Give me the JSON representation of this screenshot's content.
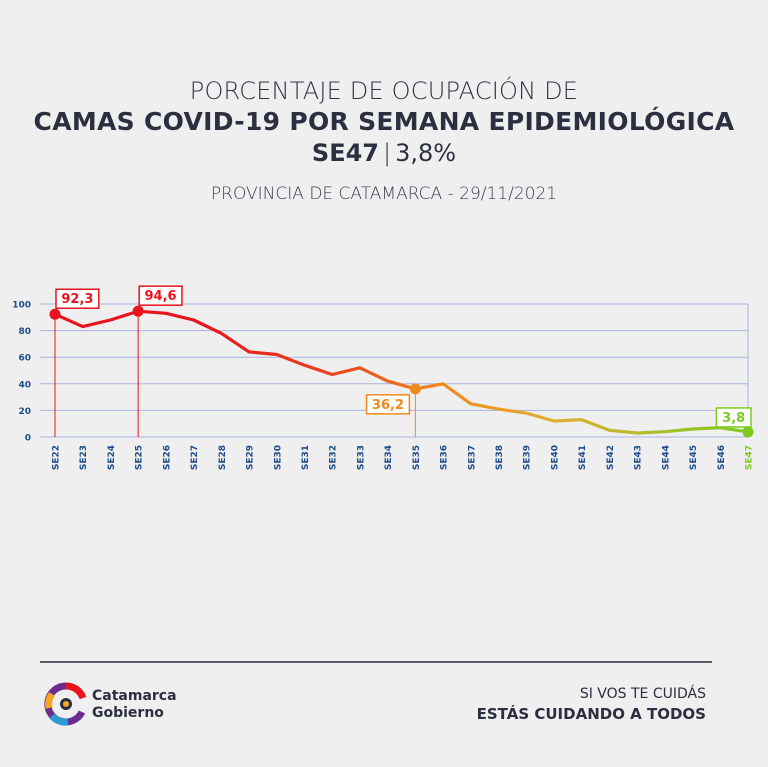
{
  "header": {
    "line1": "PORCENTAJE DE OCUPACIÓN DE",
    "line2": "CAMAS COVID-19 POR SEMANA EPIDEMIOLÓGICA",
    "line3_week": "SE47",
    "line3_sep": "|",
    "line3_value": "3,8%",
    "subtitle": "PROVINCIA DE CATAMARCA - 29/11/2021"
  },
  "chart_data": {
    "type": "line",
    "title": "PORCENTAJE DE OCUPACIÓN DE CAMAS COVID-19 POR SEMANA EPIDEMIOLÓGICA",
    "categories": [
      "SE22",
      "SE23",
      "SE24",
      "SE25",
      "SE26",
      "SE27",
      "SE28",
      "SE29",
      "SE30",
      "SE31",
      "SE32",
      "SE33",
      "SE34",
      "SE35",
      "SE36",
      "SE37",
      "SE38",
      "SE39",
      "SE40",
      "SE41",
      "SE42",
      "SE43",
      "SE44",
      "SE45",
      "SE46",
      "SE47"
    ],
    "values": [
      92.3,
      83,
      88,
      94.6,
      93,
      88,
      78,
      64,
      62,
      54,
      47,
      52,
      42,
      36.2,
      40,
      25,
      21,
      18,
      12,
      13,
      5,
      3,
      4,
      6,
      7,
      3.8
    ],
    "ylim": [
      0,
      100
    ],
    "yticks": [
      0,
      20,
      40,
      60,
      80,
      100
    ],
    "grid": true,
    "highlights": [
      {
        "index": 0,
        "label": "92,3",
        "color": "#e8141d"
      },
      {
        "index": 3,
        "label": "94,6",
        "color": "#e8141d"
      },
      {
        "index": 13,
        "label": "36,2",
        "color": "#f08a1c"
      },
      {
        "index": 25,
        "label": "3,8",
        "color": "#7ecb1f"
      }
    ],
    "colors": {
      "start": "#e8141d",
      "middle": "#f08a1c",
      "late": "#e0b032",
      "end": "#7ecb1f",
      "axis_text": "#1f4b8a",
      "grid": "#a9b4e0"
    }
  },
  "footer": {
    "logo_line1": "Catamarca",
    "logo_line2": "Gobierno",
    "slogan1": "SI VOS TE CUIDÁS",
    "slogan2": "ESTÁS CUIDANDO A TODOS"
  }
}
